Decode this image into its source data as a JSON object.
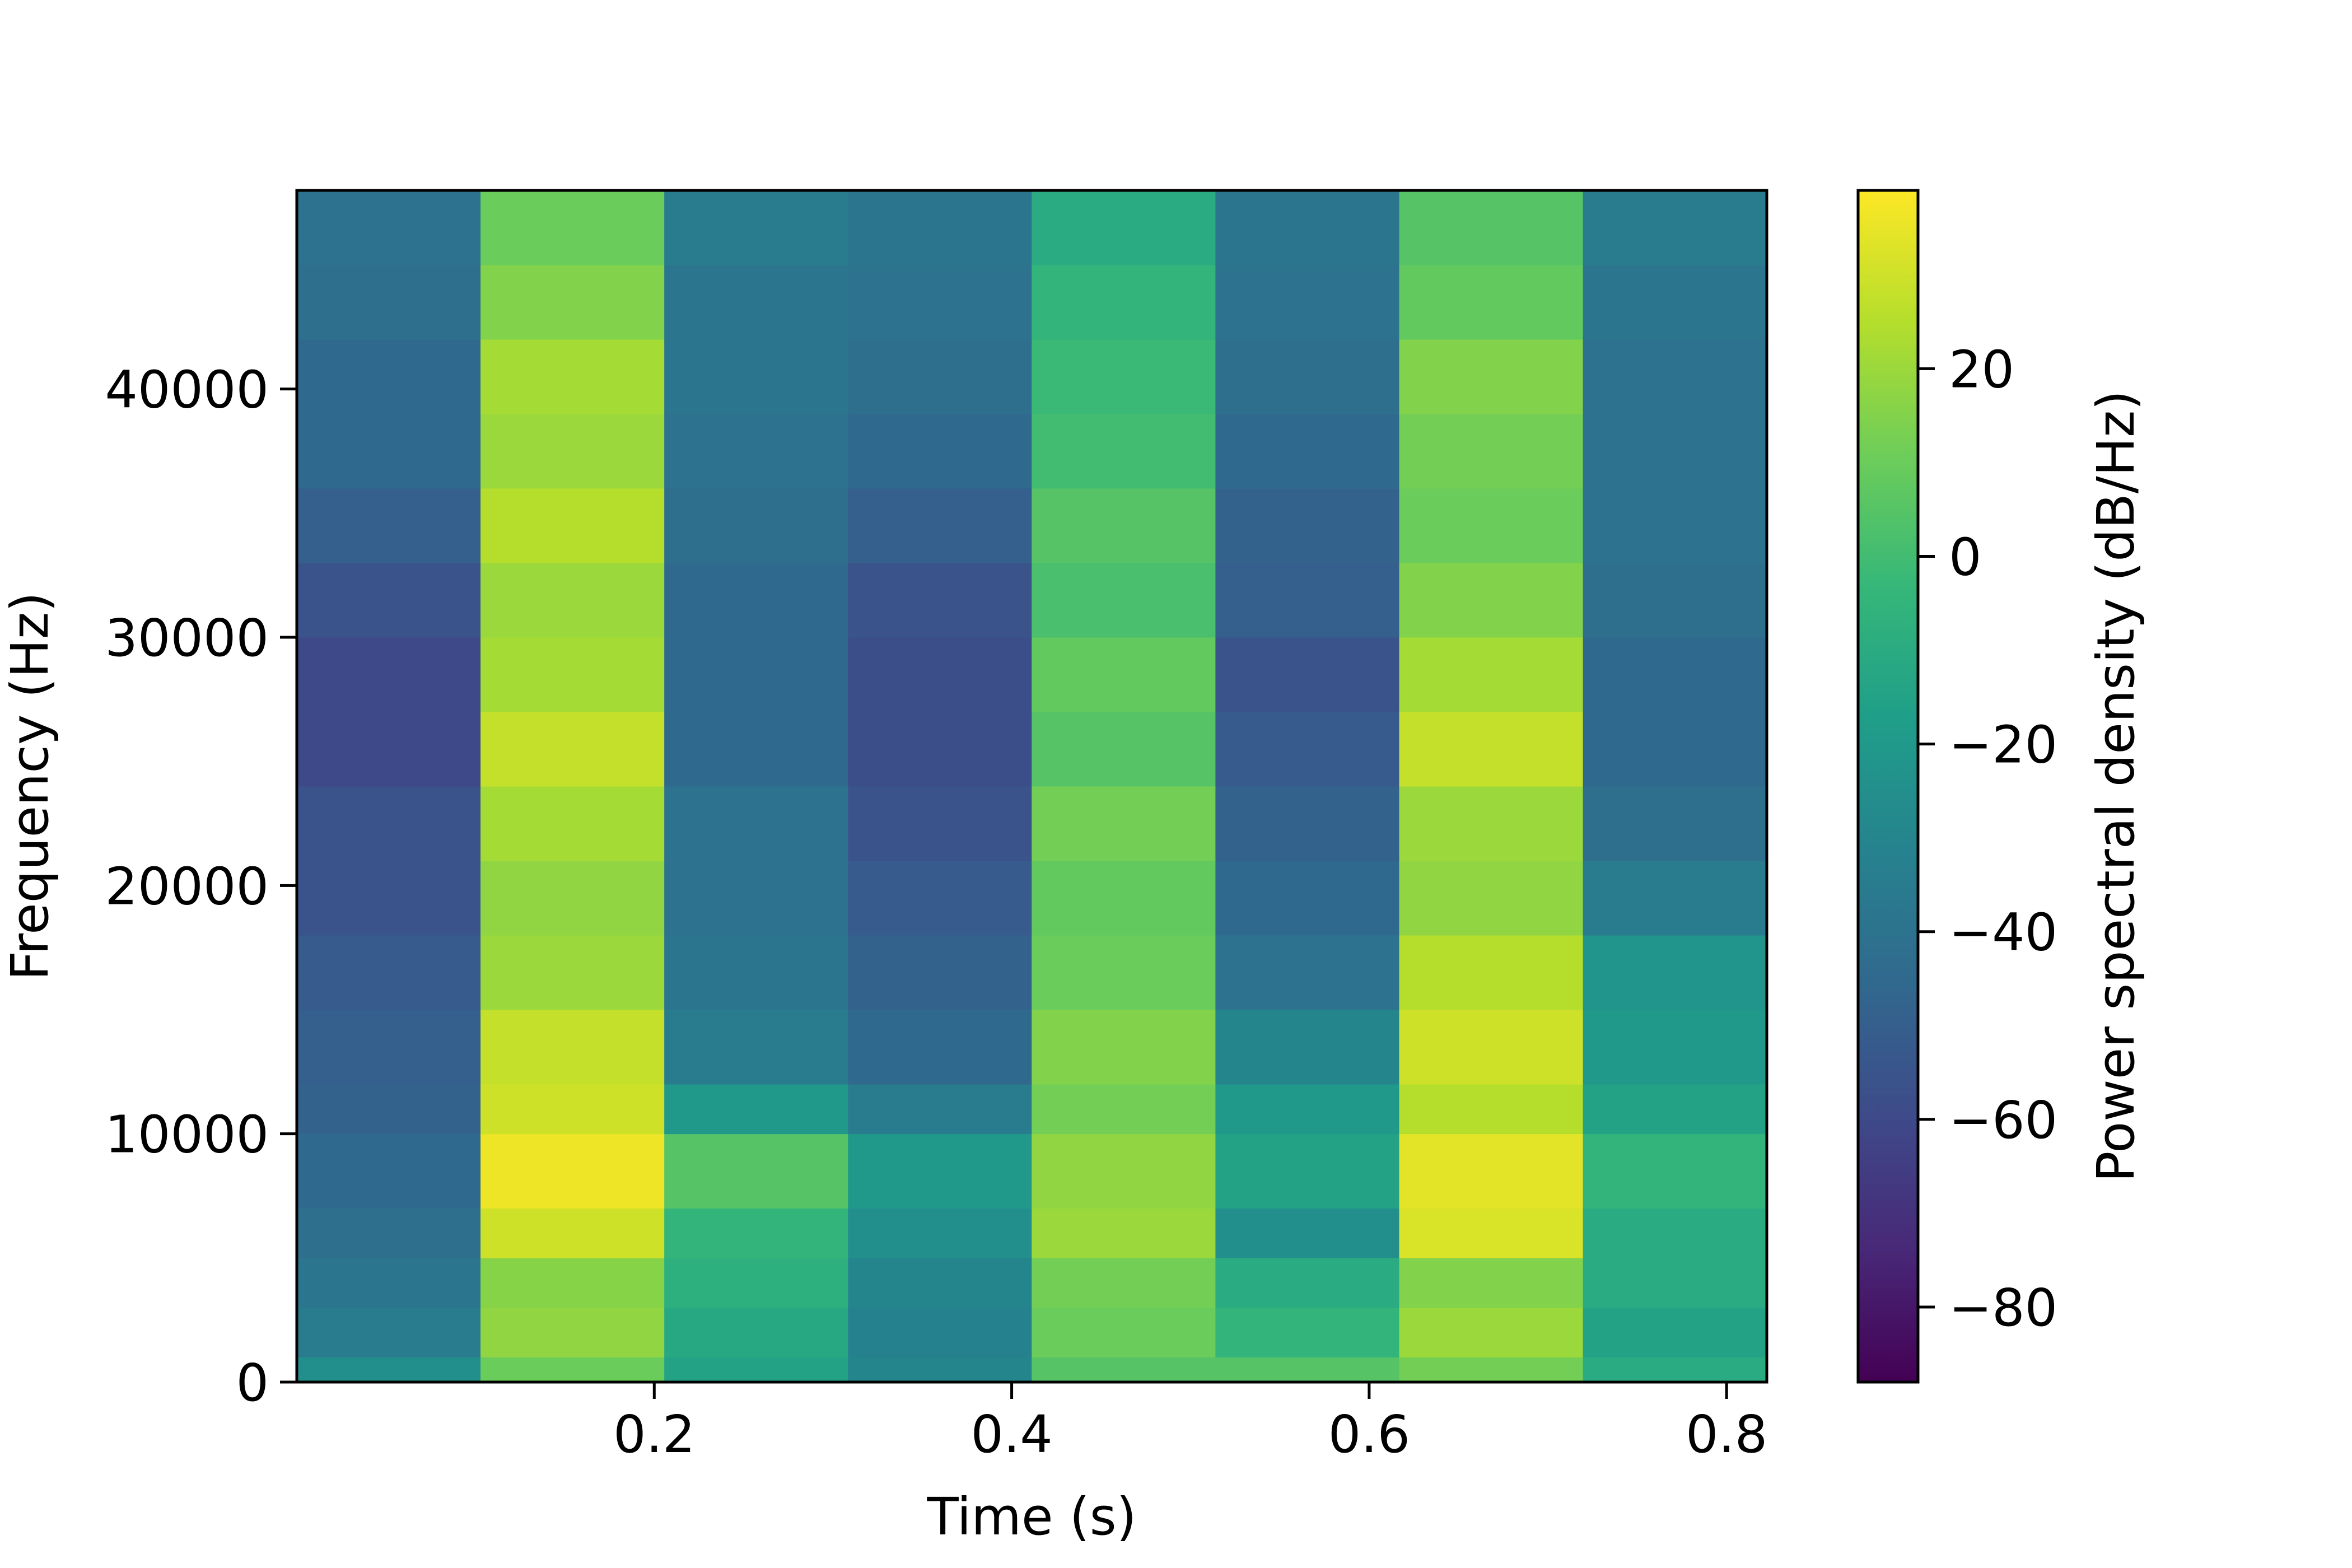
{
  "chart_data": {
    "type": "heatmap",
    "title": "",
    "xlabel": "Time (s)",
    "ylabel": "Frequency (Hz)",
    "xlim": [
      0.0,
      0.8225
    ],
    "ylim": [
      0,
      48000
    ],
    "x_ticks": [
      0.2,
      0.4,
      0.6,
      0.8
    ],
    "x_tick_labels": [
      "0.2",
      "0.4",
      "0.6",
      "0.8"
    ],
    "y_ticks": [
      0,
      10000,
      20000,
      30000,
      40000
    ],
    "y_tick_labels": [
      "0",
      "10000",
      "20000",
      "30000",
      "40000"
    ],
    "colormap": "viridis",
    "colorbar": {
      "label": "Power spectral density (dB/Hz)",
      "range": [
        -88,
        39
      ],
      "ticks": [
        20,
        0,
        -20,
        -40,
        -60,
        -80
      ],
      "tick_labels": [
        "20",
        "0",
        "−20",
        "−40",
        "−60",
        "−80"
      ]
    },
    "time_bins": [
      {
        "t_start": 0.0,
        "t_end": 0.1028,
        "t_center": 0.0514
      },
      {
        "t_start": 0.1028,
        "t_end": 0.2056,
        "t_center": 0.1542
      },
      {
        "t_start": 0.2056,
        "t_end": 0.3084,
        "t_center": 0.257
      },
      {
        "t_start": 0.3084,
        "t_end": 0.4112,
        "t_center": 0.3598
      },
      {
        "t_start": 0.4112,
        "t_end": 0.514,
        "t_center": 0.4626
      },
      {
        "t_start": 0.514,
        "t_end": 0.6168,
        "t_center": 0.5654
      },
      {
        "t_start": 0.6168,
        "t_end": 0.7196,
        "t_center": 0.6682
      },
      {
        "t_start": 0.7196,
        "t_end": 0.8225,
        "t_center": 0.771
      }
    ],
    "freq_bands": [
      {
        "f_low": 0,
        "f_high": 1000,
        "psd_db": [
          -25,
          10,
          -15,
          -30,
          5,
          5,
          12,
          -10
        ]
      },
      {
        "f_low": 1000,
        "f_high": 3000,
        "psd_db": [
          -35,
          18,
          -12,
          -32,
          10,
          -5,
          20,
          -15
        ]
      },
      {
        "f_low": 3000,
        "f_high": 5000,
        "psd_db": [
          -38,
          16,
          -8,
          -30,
          12,
          -10,
          15,
          -10
        ]
      },
      {
        "f_low": 5000,
        "f_high": 7000,
        "psd_db": [
          -42,
          30,
          -5,
          -25,
          20,
          -25,
          32,
          -10
        ]
      },
      {
        "f_low": 7000,
        "f_high": 10000,
        "psd_db": [
          -45,
          36,
          5,
          -20,
          18,
          -15,
          34,
          -5
        ]
      },
      {
        "f_low": 10000,
        "f_high": 12000,
        "psd_db": [
          -48,
          30,
          -20,
          -35,
          12,
          -20,
          25,
          -15
        ]
      },
      {
        "f_low": 12000,
        "f_high": 15000,
        "psd_db": [
          -50,
          28,
          -35,
          -45,
          15,
          -30,
          30,
          -20
        ]
      },
      {
        "f_low": 15000,
        "f_high": 18000,
        "psd_db": [
          -52,
          20,
          -38,
          -48,
          10,
          -40,
          25,
          -22
        ]
      },
      {
        "f_low": 18000,
        "f_high": 21000,
        "psd_db": [
          -55,
          18,
          -40,
          -52,
          8,
          -45,
          18,
          -35
        ]
      },
      {
        "f_low": 21000,
        "f_high": 24000,
        "psd_db": [
          -55,
          22,
          -40,
          -55,
          12,
          -48,
          20,
          -42
        ]
      },
      {
        "f_low": 24000,
        "f_high": 27000,
        "psd_db": [
          -60,
          28,
          -45,
          -58,
          5,
          -52,
          28,
          -45
        ]
      },
      {
        "f_low": 27000,
        "f_high": 30000,
        "psd_db": [
          -60,
          22,
          -45,
          -58,
          8,
          -55,
          22,
          -45
        ]
      },
      {
        "f_low": 30000,
        "f_high": 33000,
        "psd_db": [
          -55,
          20,
          -45,
          -55,
          2,
          -50,
          15,
          -42
        ]
      },
      {
        "f_low": 33000,
        "f_high": 36000,
        "psd_db": [
          -50,
          25,
          -42,
          -50,
          5,
          -48,
          10,
          -40
        ]
      },
      {
        "f_low": 36000,
        "f_high": 39000,
        "psd_db": [
          -45,
          20,
          -40,
          -45,
          0,
          -45,
          12,
          -40
        ]
      },
      {
        "f_low": 39000,
        "f_high": 42000,
        "psd_db": [
          -45,
          22,
          -38,
          -42,
          -2,
          -42,
          15,
          -40
        ]
      },
      {
        "f_low": 42000,
        "f_high": 45000,
        "psd_db": [
          -42,
          15,
          -38,
          -40,
          -5,
          -40,
          8,
          -38
        ]
      },
      {
        "f_low": 45000,
        "f_high": 48000,
        "psd_db": [
          -40,
          10,
          -35,
          -38,
          -10,
          -38,
          5,
          -35
        ]
      }
    ]
  }
}
